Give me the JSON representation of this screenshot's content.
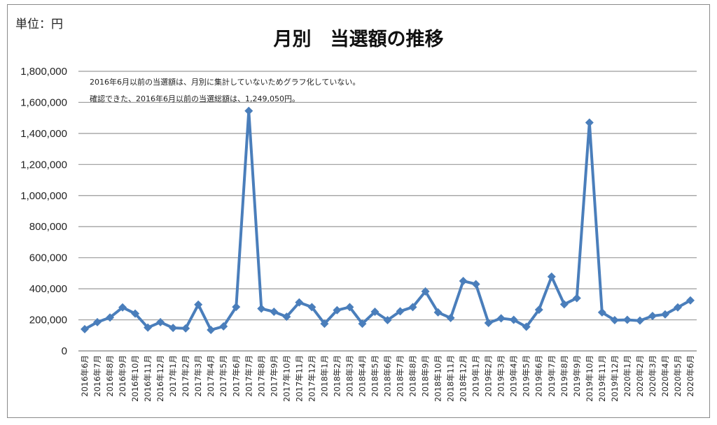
{
  "unit_label": "単位：円",
  "chart_data": {
    "type": "line",
    "title": "月別　当選額の推移",
    "xlabel": "",
    "ylabel": "単位：円",
    "ylim": [
      0,
      1800000
    ],
    "y_ticks": [
      0,
      200000,
      400000,
      600000,
      800000,
      1000000,
      1200000,
      1400000,
      1600000,
      1800000
    ],
    "y_tick_labels": [
      "0",
      "200,000",
      "400,000",
      "600,000",
      "800,000",
      "1,000,000",
      "1,200,000",
      "1,400,000",
      "1,600,000",
      "1,800,000"
    ],
    "grid": true,
    "annotations": [
      "2016年6月以前の当選額は、月別に集計していないためグラフ化していない。",
      "確認できた、2016年6月以前の当選総額は、1,249,050円。"
    ],
    "series_color": "#4a7ebb",
    "categories": [
      "2016年6月",
      "2016年7月",
      "2016年8月",
      "2016年9月",
      "2016年10月",
      "2016年11月",
      "2016年12月",
      "2017年1月",
      "2017年2月",
      "2017年3月",
      "2017年4月",
      "2017年5月",
      "2017年6月",
      "2017年7月",
      "2017年8月",
      "2017年9月",
      "2017年10月",
      "2017年11月",
      "2017年12月",
      "2018年1月",
      "2018年2月",
      "2018年3月",
      "2018年4月",
      "2018年5月",
      "2018年6月",
      "2018年7月",
      "2018年8月",
      "2018年9月",
      "2018年10月",
      "2018年11月",
      "2018年12月",
      "2019年1月",
      "2019年2月",
      "2019年3月",
      "2019年4月",
      "2019年5月",
      "2019年6月",
      "2019年7月",
      "2019年8月",
      "2019年9月",
      "2019年10月",
      "2019年11月",
      "2019年12月",
      "2020年1月",
      "2020年2月",
      "2020年3月",
      "2020年4月",
      "2020年5月",
      "2020年6月"
    ],
    "values": [
      140000,
      185000,
      215000,
      280000,
      240000,
      150000,
      185000,
      148000,
      145000,
      298000,
      135000,
      158000,
      283000,
      1545000,
      272000,
      252000,
      220000,
      312000,
      282000,
      175000,
      262000,
      282000,
      175000,
      252000,
      198000,
      255000,
      282000,
      383000,
      248000,
      212000,
      450000,
      430000,
      180000,
      210000,
      200000,
      155000,
      265000,
      478000,
      300000,
      340000,
      1470000,
      248000,
      198000,
      200000,
      195000,
      225000,
      235000,
      280000,
      325000
    ]
  }
}
